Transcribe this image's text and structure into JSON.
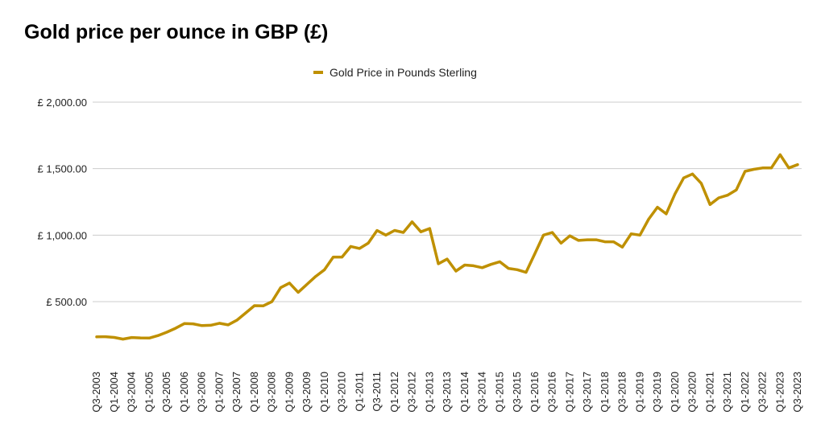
{
  "chart_data": {
    "type": "line",
    "title": "Gold price per ounce in GBP (£)",
    "legend": {
      "position": "top",
      "label": "Gold Price in Pounds Sterling"
    },
    "xlabel": "",
    "ylabel": "",
    "ylim": [
      0,
      2000
    ],
    "grid": true,
    "series_color": "#bf9000",
    "grid_color": "#cccccc",
    "y_ticks": [
      {
        "value": 500,
        "label": "£ 500.00"
      },
      {
        "value": 1000,
        "label": "£ 1,000.00"
      },
      {
        "value": 1500,
        "label": "£ 1,500.00"
      },
      {
        "value": 2000,
        "label": "£ 2,000.00"
      }
    ],
    "x_tick_labels": [
      "Q3-2003",
      "Q1-2004",
      "Q3-2004",
      "Q1-2005",
      "Q3-2005",
      "Q1-2006",
      "Q3-2006",
      "Q1-2007",
      "Q3-2007",
      "Q1-2008",
      "Q3-2008",
      "Q1-2009",
      "Q3-2009",
      "Q1-2010",
      "Q3-2010",
      "Q1-2011",
      "Q3-2011",
      "Q1-2012",
      "Q3-2012",
      "Q1-2013",
      "Q3-2013",
      "Q1-2014",
      "Q3-2014",
      "Q1-2015",
      "Q3-2015",
      "Q1-2016",
      "Q3-2016",
      "Q1-2017",
      "Q3-2017",
      "Q1-2018",
      "Q3-2018",
      "Q1-2019",
      "Q3-2019",
      "Q1-2020",
      "Q3-2020",
      "Q1-2021",
      "Q3-2021",
      "Q1-2022",
      "Q3-2022",
      "Q1-2023",
      "Q3-2023"
    ],
    "categories": [
      "Q3-2003",
      "Q4-2003",
      "Q1-2004",
      "Q2-2004",
      "Q3-2004",
      "Q4-2004",
      "Q1-2005",
      "Q2-2005",
      "Q3-2005",
      "Q4-2005",
      "Q1-2006",
      "Q2-2006",
      "Q3-2006",
      "Q4-2006",
      "Q1-2007",
      "Q2-2007",
      "Q3-2007",
      "Q4-2007",
      "Q1-2008",
      "Q2-2008",
      "Q3-2008",
      "Q4-2008",
      "Q1-2009",
      "Q2-2009",
      "Q3-2009",
      "Q4-2009",
      "Q1-2010",
      "Q2-2010",
      "Q3-2010",
      "Q4-2010",
      "Q1-2011",
      "Q2-2011",
      "Q3-2011",
      "Q4-2011",
      "Q1-2012",
      "Q2-2012",
      "Q3-2012",
      "Q4-2012",
      "Q1-2013",
      "Q2-2013",
      "Q3-2013",
      "Q4-2013",
      "Q1-2014",
      "Q2-2014",
      "Q3-2014",
      "Q4-2014",
      "Q1-2015",
      "Q2-2015",
      "Q3-2015",
      "Q4-2015",
      "Q1-2016",
      "Q2-2016",
      "Q3-2016",
      "Q4-2016",
      "Q1-2017",
      "Q2-2017",
      "Q3-2017",
      "Q4-2017",
      "Q1-2018",
      "Q2-2018",
      "Q3-2018",
      "Q4-2018",
      "Q1-2019",
      "Q2-2019",
      "Q3-2019",
      "Q4-2019",
      "Q1-2020",
      "Q2-2020",
      "Q3-2020",
      "Q4-2020",
      "Q1-2021",
      "Q2-2021",
      "Q3-2021",
      "Q4-2021",
      "Q1-2022",
      "Q2-2022",
      "Q3-2022",
      "Q4-2022",
      "Q1-2023",
      "Q2-2023",
      "Q3-2023"
    ],
    "series": [
      {
        "name": "Gold Price in Pounds Sterling",
        "values": [
          235,
          236,
          231,
          218,
          230,
          227,
          226,
          245,
          270,
          300,
          335,
          333,
          320,
          322,
          337,
          325,
          360,
          415,
          470,
          468,
          500,
          605,
          640,
          570,
          630,
          690,
          740,
          835,
          835,
          915,
          900,
          940,
          1035,
          1000,
          1035,
          1020,
          1100,
          1025,
          1050,
          785,
          820,
          730,
          775,
          770,
          755,
          780,
          800,
          750,
          740,
          720,
          860,
          1000,
          1020,
          940,
          995,
          960,
          965,
          965,
          950,
          950,
          910,
          1010,
          1000,
          1120,
          1210,
          1160,
          1310,
          1430,
          1460,
          1390,
          1230,
          1280,
          1300,
          1340,
          1480,
          1495,
          1505,
          1505,
          1605,
          1505,
          1530
        ]
      }
    ]
  }
}
